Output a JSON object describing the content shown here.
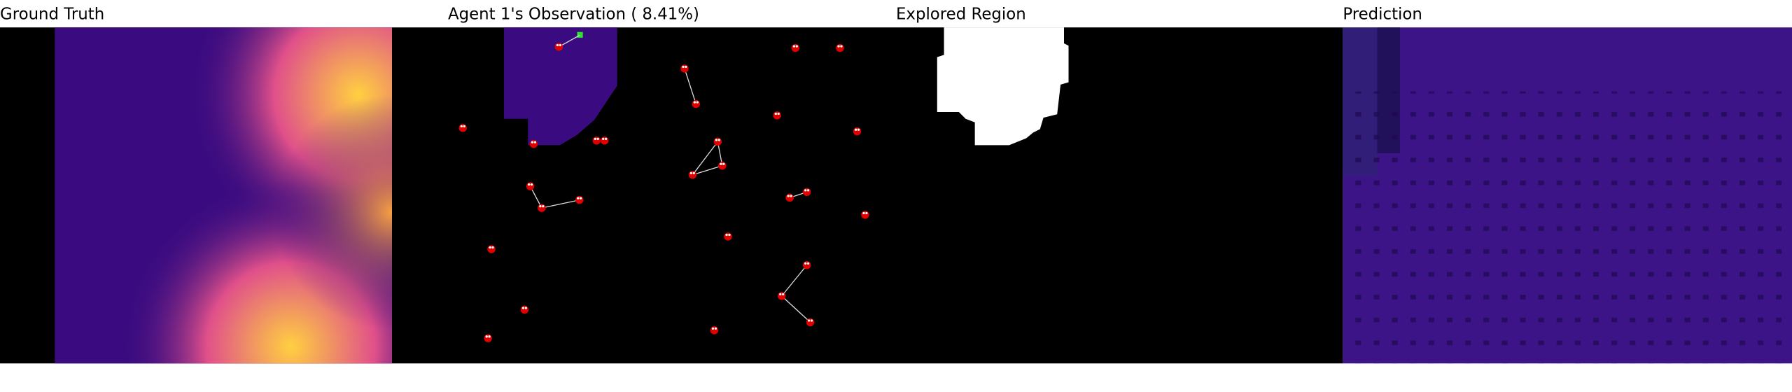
{
  "panels": [
    {
      "title": "Ground Truth"
    },
    {
      "title": "Agent 1's Observation ( 8.41%)"
    },
    {
      "title": "Explored Region"
    },
    {
      "title": "Prediction"
    }
  ]
}
